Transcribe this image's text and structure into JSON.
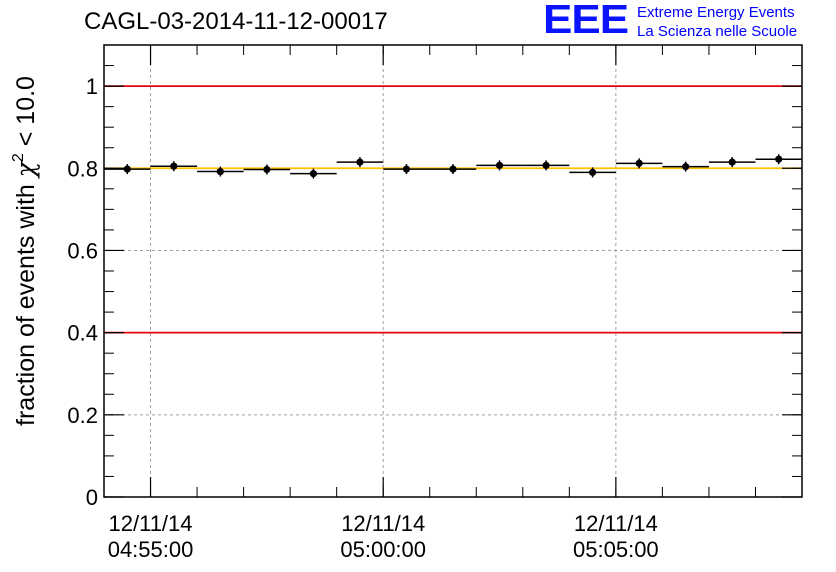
{
  "header": {
    "title": "CAGL-03-2014-11-12-00017",
    "logo_mark": "EEE",
    "logo_line1": "Extreme Energy Events",
    "logo_line2": "La Scienza nelle Scuole"
  },
  "colors": {
    "limit_line": "#e8000b",
    "reference_line": "#ffc000",
    "grid": "#a0a0a0",
    "marker": "#000000",
    "logo": "#0a14ff"
  },
  "chart_data": {
    "type": "scatter",
    "title": "CAGL-03-2014-11-12-00017",
    "ylabel_main": "fraction of events with ",
    "ylabel_chi": "χ",
    "ylabel_sup": "2",
    "ylabel_tail": " < 10.0",
    "ylim": [
      0,
      1.1
    ],
    "yticks": [
      {
        "value": 0,
        "label": "0"
      },
      {
        "value": 0.2,
        "label": "0.2"
      },
      {
        "value": 0.4,
        "label": "0.4"
      },
      {
        "value": 0.6,
        "label": "0.6"
      },
      {
        "value": 0.8,
        "label": "0.8"
      },
      {
        "value": 1,
        "label": "1"
      }
    ],
    "xlim": [
      "04:54:00",
      "05:09:00"
    ],
    "xticks": [
      {
        "value": "04:55:00",
        "date": "12/11/14",
        "time": "04:55:00"
      },
      {
        "value": "05:00:00",
        "date": "12/11/14",
        "time": "05:00:00"
      },
      {
        "value": "05:05:00",
        "date": "12/11/14",
        "time": "05:05:00"
      }
    ],
    "grid": true,
    "hlines": [
      {
        "y": 1.0,
        "role": "limit"
      },
      {
        "y": 0.4,
        "role": "limit"
      },
      {
        "y": 0.8,
        "role": "reference"
      }
    ],
    "bin_width_minutes": 1,
    "x": [
      "04:54:30",
      "04:55:30",
      "04:56:30",
      "04:57:30",
      "04:58:30",
      "04:59:30",
      "05:00:30",
      "05:01:30",
      "05:02:30",
      "05:03:30",
      "05:04:30",
      "05:05:30",
      "05:06:30",
      "05:07:30",
      "05:08:30"
    ],
    "y": [
      0.798,
      0.805,
      0.792,
      0.797,
      0.787,
      0.815,
      0.798,
      0.798,
      0.807,
      0.807,
      0.79,
      0.812,
      0.804,
      0.815,
      0.822
    ]
  }
}
